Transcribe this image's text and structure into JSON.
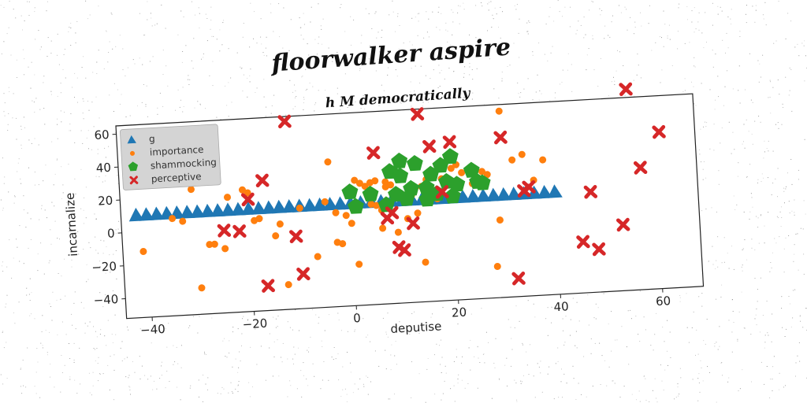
{
  "chart_data": {
    "type": "scatter",
    "title": "floorwalker aspire",
    "subtitle": "h M democratically",
    "xlabel": "deputise",
    "ylabel": "incarnalize",
    "xlim": [
      -45,
      68
    ],
    "ylim": [
      -52,
      65
    ],
    "xticks": [
      -40,
      -20,
      0,
      20,
      40,
      60
    ],
    "yticks": [
      -40,
      -20,
      0,
      20,
      40,
      60
    ],
    "xtick_labels": [
      "−40",
      "−20",
      "0",
      "20",
      "40",
      "60"
    ],
    "ytick_labels": [
      "−40",
      "−20",
      "0",
      "20",
      "40",
      "60"
    ],
    "grid": false,
    "legend_position": "top-left",
    "series": [
      {
        "name": "g",
        "marker": "triangle",
        "color": "#1f77b4",
        "x": [
          -42,
          -40,
          -38,
          -36,
          -34,
          -32,
          -30,
          -28,
          -26,
          -24,
          -22,
          -20,
          -18,
          -16,
          -14,
          -12,
          -10,
          -8,
          -6,
          -4,
          -2,
          0,
          2,
          4,
          6,
          8,
          10,
          12,
          14,
          16,
          18,
          20,
          22,
          24,
          26,
          28,
          30,
          32,
          34,
          36,
          38,
          40
        ],
        "y": [
          10,
          10,
          10,
          10,
          10,
          10,
          10,
          10,
          10,
          10,
          10,
          10,
          10,
          10,
          10,
          10,
          10,
          10,
          10,
          10,
          10,
          10,
          10,
          10,
          10,
          10,
          10,
          10,
          10,
          10,
          10,
          10,
          10,
          10,
          10,
          10,
          10,
          10,
          10,
          10,
          10,
          10
        ]
      },
      {
        "name": "importance",
        "marker": "circle",
        "color": "#ff7f0e",
        "x": [
          -41,
          -35,
          -31,
          -28,
          -27,
          -25,
          -21,
          -20,
          -19,
          -18,
          -15,
          -14,
          -13,
          -10,
          -5,
          -4,
          -3,
          -2,
          -1,
          0,
          1,
          1,
          2,
          3,
          4,
          5,
          5,
          6,
          6,
          7,
          7,
          8,
          8,
          9,
          9,
          10,
          11,
          12,
          13,
          14,
          15,
          16,
          17,
          18,
          20,
          22,
          24,
          26,
          27,
          28,
          29,
          30,
          32,
          34,
          36,
          38,
          -24,
          -30,
          -33,
          -7,
          -3,
          4,
          14,
          21
        ],
        "y": [
          -12,
          7,
          24,
          -10,
          -10,
          -13,
          22,
          20,
          3,
          4,
          -7,
          0,
          -37,
          9,
          12,
          36,
          5,
          -14,
          3,
          -2,
          24,
          -27,
          22,
          20,
          22,
          23,
          8,
          5,
          -6,
          22,
          19,
          20,
          30,
          -9,
          12,
          34,
          -1,
          13,
          2,
          -28,
          22,
          12,
          10,
          22,
          28,
          25,
          18,
          25,
          23,
          -33,
          -5,
          61,
          31,
          34,
          18,
          30,
          18,
          -36,
          5,
          -21,
          -13,
          9,
          18,
          30
        ]
      },
      {
        "name": "shammocking",
        "marker": "pentagon",
        "color": "#2ca02c",
        "x": [
          0,
          1,
          4,
          7,
          8,
          9,
          10,
          10,
          11,
          12,
          13,
          15,
          15,
          16,
          17,
          18,
          19,
          20,
          20,
          21,
          24,
          25,
          26
        ],
        "y": [
          17,
          8,
          15,
          8,
          28,
          14,
          25,
          34,
          11,
          17,
          32,
          17,
          10,
          25,
          13,
          30,
          20,
          11,
          35,
          18,
          26,
          19,
          18
        ]
      },
      {
        "name": "perceptive",
        "marker": "x",
        "color": "#d62728",
        "x": [
          -20,
          -22,
          -25,
          -17,
          -11,
          -12,
          -17,
          -10,
          5,
          7,
          9,
          10,
          12,
          14,
          16,
          18,
          20,
          30,
          34,
          35,
          53,
          55,
          57,
          47,
          48,
          45,
          32,
          61,
          8
        ],
        "y": [
          16,
          -3,
          -2,
          27,
          -8,
          62,
          -37,
          -31,
          40,
          0,
          -18,
          -20,
          -4,
          62,
          42,
          14,
          44,
          45,
          12,
          14,
          -12,
          70,
          22,
          9,
          -26,
          -21,
          -41,
          43,
          3
        ]
      }
    ]
  }
}
